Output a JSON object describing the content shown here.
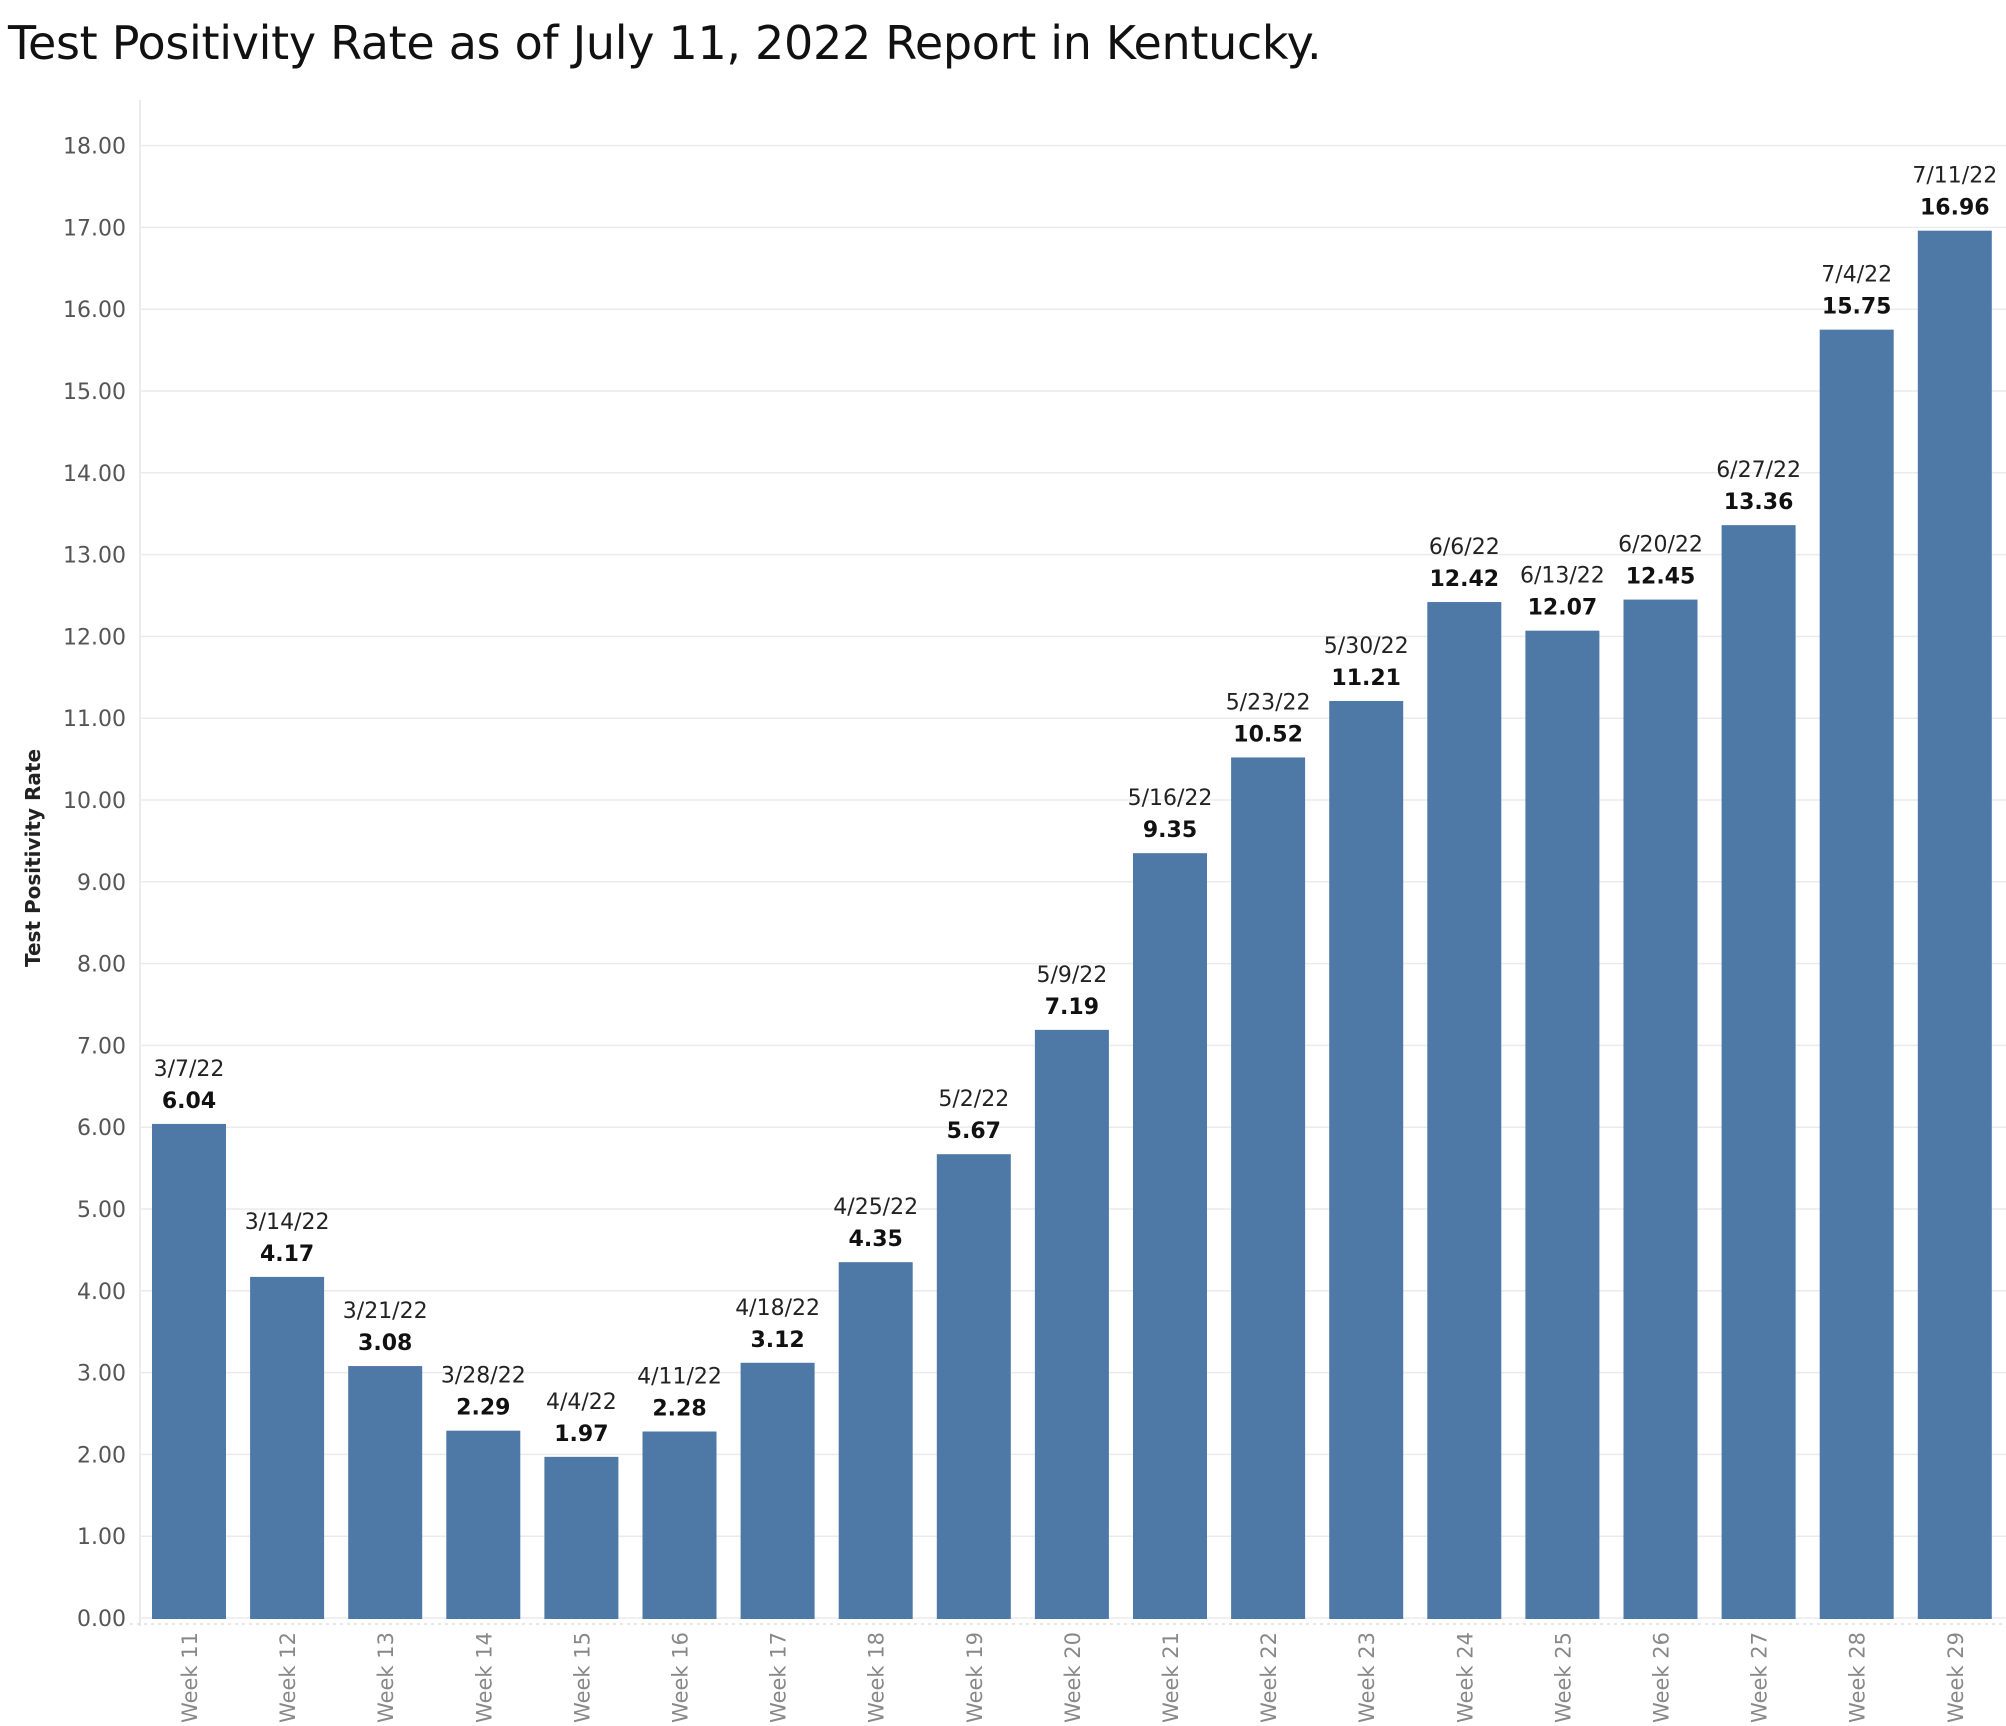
{
  "chart_data": {
    "type": "bar",
    "title": "Test Positivity Rate as of July 11, 2022 Report in Kentucky.",
    "ylabel": "Test Positivity Rate",
    "xlabel": "",
    "ylim": [
      0,
      18.5
    ],
    "yticks": [
      "0.00",
      "1.00",
      "2.00",
      "3.00",
      "4.00",
      "5.00",
      "6.00",
      "7.00",
      "8.00",
      "9.00",
      "10.00",
      "11.00",
      "12.00",
      "13.00",
      "14.00",
      "15.00",
      "16.00",
      "17.00",
      "18.00"
    ],
    "grid": true,
    "bar_color": "#4e79a7",
    "categories": [
      "Week 11",
      "Week 12",
      "Week 13",
      "Week 14",
      "Week 15",
      "Week 16",
      "Week 17",
      "Week 18",
      "Week 19",
      "Week 20",
      "Week 21",
      "Week 22",
      "Week 23",
      "Week 24",
      "Week 25",
      "Week 26",
      "Week 27",
      "Week 28",
      "Week 29"
    ],
    "dates": [
      "3/7/22",
      "3/14/22",
      "3/21/22",
      "3/28/22",
      "4/4/22",
      "4/11/22",
      "4/18/22",
      "4/25/22",
      "5/2/22",
      "5/9/22",
      "5/16/22",
      "5/23/22",
      "5/30/22",
      "6/6/22",
      "6/13/22",
      "6/20/22",
      "6/27/22",
      "7/4/22",
      "7/11/22"
    ],
    "values": [
      6.04,
      4.17,
      3.08,
      2.29,
      1.97,
      2.28,
      3.12,
      4.35,
      5.67,
      7.19,
      9.35,
      10.52,
      11.21,
      12.42,
      12.07,
      12.45,
      13.36,
      15.75,
      16.96
    ],
    "value_labels": [
      "6.04",
      "4.17",
      "3.08",
      "2.29",
      "1.97",
      "2.28",
      "3.12",
      "4.35",
      "5.67",
      "7.19",
      "9.35",
      "10.52",
      "11.21",
      "12.42",
      "12.07",
      "12.45",
      "13.36",
      "15.75",
      "16.96"
    ]
  }
}
